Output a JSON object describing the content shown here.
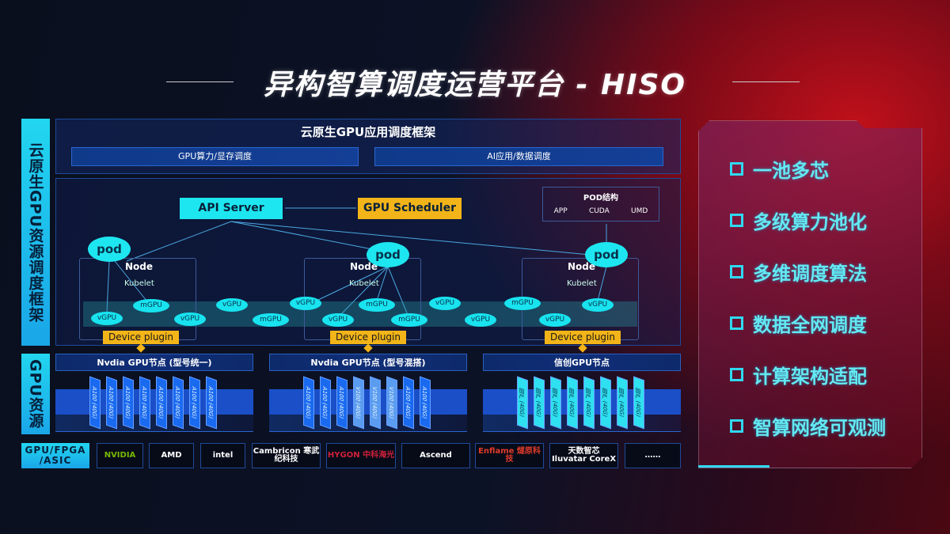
{
  "title": "异构智算调度运营平台 - HISO",
  "left_labels": {
    "framework": "云原生GPU资源调度框架",
    "resources": "GPU资源",
    "chip_types": "GPU/FPGA /ASIC"
  },
  "framework": {
    "title": "云原生GPU应用调度框架",
    "bars": [
      "GPU算力/显存调度",
      "AI应用/数据调度"
    ]
  },
  "api_server": "API Server",
  "gpu_scheduler": "GPU Scheduler",
  "pod_structure": {
    "title": "POD结构",
    "items": [
      "APP",
      "CUDA",
      "UMD"
    ]
  },
  "pod_label": "pod",
  "node_label": "Node",
  "kubelet_label": "Kubelet",
  "device_plugin": "Device plugin",
  "virtual_gpus": [
    "vGPU",
    "mGPU",
    "vGPU",
    "vGPU",
    "mGPU",
    "vGPU",
    "vGPU",
    "mGPU",
    "mGPU",
    "vGPU",
    "vGPU",
    "mGPU",
    "vGPU",
    "vGPU"
  ],
  "gpu_nodes": [
    {
      "title": "Nvdia GPU节点 (型号统一)",
      "chips": [
        "A100 (40G)",
        "A100 (40G)",
        "A100 (40G)",
        "A100 (40G)",
        "A100 (40G)",
        "A100 (40G)",
        "A100 (40G)",
        "A100 (40G)"
      ]
    },
    {
      "title": "Nvdia GPU节点 (型号混搭)",
      "chips": [
        "A100 (40G)",
        "A100 (40G)",
        "A100 (40G)",
        "V100 (40G)",
        "V100 (40G)",
        "V100 (40G)",
        "A100 (40G)",
        "A100 (40G)"
      ]
    },
    {
      "title": "信创GPU节点",
      "chips": [
        "国产 (40G)",
        "国产 (40G)",
        "国产 (40G)",
        "国产 (40G)",
        "国产 (40G)",
        "国产 (40G)",
        "国产 (40G)",
        "国产 (40G)"
      ]
    }
  ],
  "vendors": [
    {
      "name": "NVIDIA",
      "color": "#76b900"
    },
    {
      "name": "AMD",
      "color": "#ffffff"
    },
    {
      "name": "intel",
      "color": "#ffffff"
    },
    {
      "name": "Cambricon 寒武纪科技",
      "color": "#ffffff"
    },
    {
      "name": "HYGON 中科海光",
      "color": "#d0203a"
    },
    {
      "name": "Ascend",
      "color": "#ffffff"
    },
    {
      "name": "Enflame 燧原科技",
      "color": "#e03a2a"
    },
    {
      "name": "天数智芯 Iluvatar CoreX",
      "color": "#ffffff"
    },
    {
      "name": "……",
      "color": "#ffffff"
    }
  ],
  "features": [
    "一池多芯",
    "多级算力池化",
    "多维调度算法",
    "数据全网调度",
    "计算架构适配",
    "智算网络可观测"
  ],
  "colors": {
    "cyan": "#18e3ef",
    "gold": "#f2b418",
    "blue": "#1a5ee0",
    "accent_red": "#c0101a"
  }
}
